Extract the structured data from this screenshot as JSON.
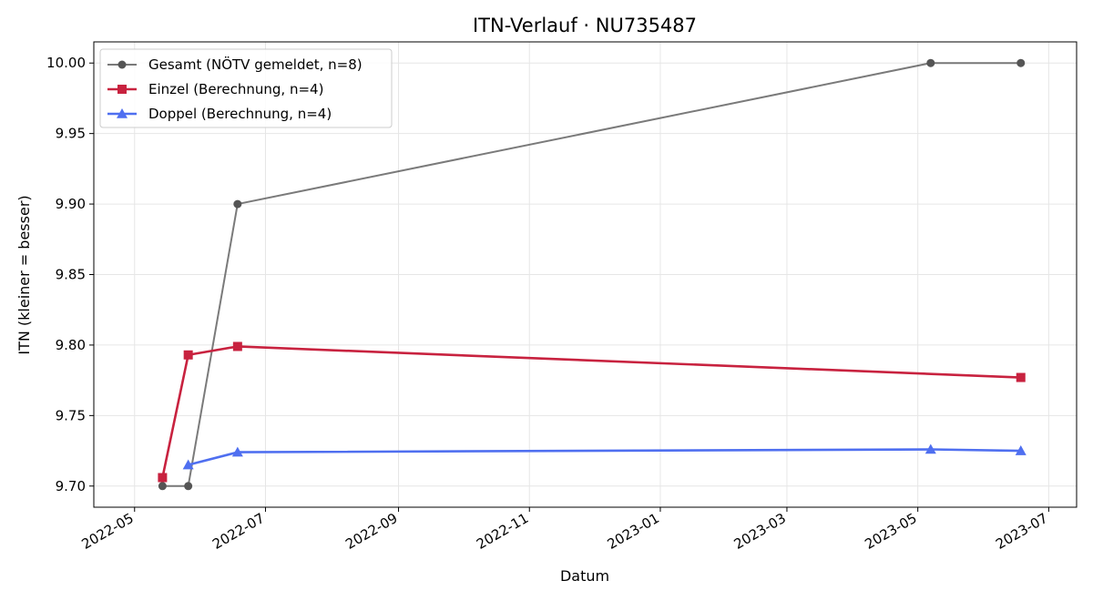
{
  "chart_data": {
    "type": "line",
    "title": "ITN-Verlauf · NU735487",
    "xlabel": "Datum",
    "ylabel": "ITN  (kleiner = besser)",
    "x_type": "date",
    "xlim": [
      "2022-04-12",
      "2023-07-14"
    ],
    "ylim": [
      9.685,
      10.015
    ],
    "x_ticks": [
      "2022-05",
      "2022-07",
      "2022-09",
      "2022-11",
      "2023-01",
      "2023-03",
      "2023-05",
      "2023-07"
    ],
    "y_ticks": [
      "9.70",
      "9.75",
      "9.80",
      "9.85",
      "9.90",
      "9.95",
      "10.00"
    ],
    "grid": true,
    "legend_position": "top-left",
    "series": [
      {
        "name": "Gesamt (NÖTV gemeldet, n=8)",
        "color": "#555555",
        "marker": "circle",
        "points": [
          {
            "x": "2022-05-14",
            "y": 9.7
          },
          {
            "x": "2022-05-26",
            "y": 9.7
          },
          {
            "x": "2022-06-18",
            "y": 9.9
          },
          {
            "x": "2023-05-07",
            "y": 10.0
          },
          {
            "x": "2023-06-18",
            "y": 10.0
          }
        ]
      },
      {
        "name": "Einzel (Berechnung, n=4)",
        "color": "#c8223f",
        "marker": "square",
        "points": [
          {
            "x": "2022-05-14",
            "y": 9.706
          },
          {
            "x": "2022-05-26",
            "y": 9.793
          },
          {
            "x": "2022-06-18",
            "y": 9.799
          },
          {
            "x": "2023-06-18",
            "y": 9.777
          }
        ]
      },
      {
        "name": "Doppel (Berechnung, n=4)",
        "color": "#4f6ff0",
        "marker": "triangle",
        "points": [
          {
            "x": "2022-05-26",
            "y": 9.715
          },
          {
            "x": "2022-06-18",
            "y": 9.724
          },
          {
            "x": "2023-05-07",
            "y": 9.726
          },
          {
            "x": "2023-06-18",
            "y": 9.725
          }
        ]
      }
    ]
  }
}
